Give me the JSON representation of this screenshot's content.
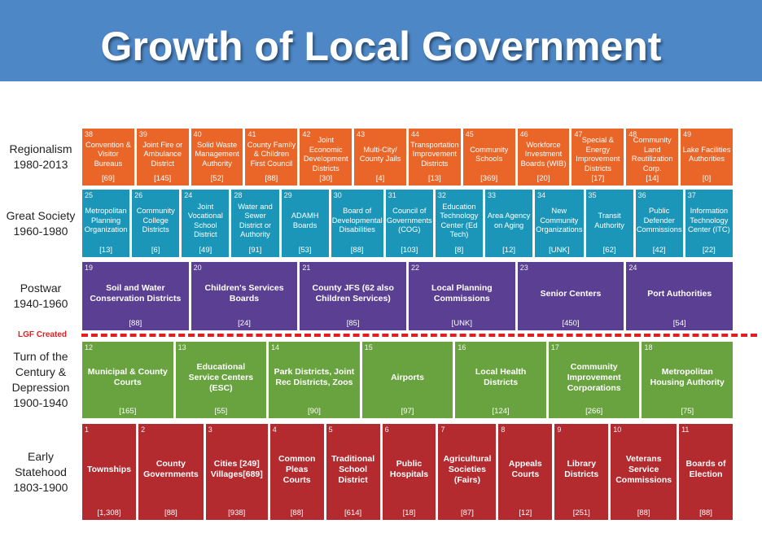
{
  "header": {
    "title": "Growth of Local Government"
  },
  "divider": {
    "label": "LGF Created"
  },
  "rows": [
    {
      "label": [
        "Regionalism",
        "1980-2013"
      ],
      "cells": [
        {
          "number": 38,
          "name": "Convention & Visitor Bureaus",
          "count": "[69]"
        },
        {
          "number": 39,
          "name": "Joint Fire or Ambulance District",
          "count": "[145]"
        },
        {
          "number": 40,
          "name": "Solid Waste Management Authority",
          "count": "[52]"
        },
        {
          "number": 41,
          "name": "County Family & Children First Council",
          "count": "[88]"
        },
        {
          "number": 42,
          "name": "Joint Economic Development Districts",
          "count": "[30]"
        },
        {
          "number": 43,
          "name": "Multi-City/ County Jails",
          "count": "[4]"
        },
        {
          "number": 44,
          "name": "Transportation Improvement Districts",
          "count": "[13]"
        },
        {
          "number": 45,
          "name": "Community Schools",
          "count": "[369]"
        },
        {
          "number": 46,
          "name": "Workforce Investment Boards (WIB)",
          "count": "[20]"
        },
        {
          "number": 47,
          "name": "Special & Energy Improvement Districts",
          "count": "[17]"
        },
        {
          "number": 48,
          "name": "Community Land Reutilization Corp.",
          "count": "[14]"
        },
        {
          "number": 49,
          "name": "Lake Facilities Authorities",
          "count": "[0]"
        }
      ]
    },
    {
      "label": [
        "Great Society",
        "1960-1980"
      ],
      "cells": [
        {
          "number": 25,
          "name": "Metropolitan Planning Organization",
          "count": "[13]"
        },
        {
          "number": 26,
          "name": "Community College Districts",
          "count": "[6]"
        },
        {
          "number": 24,
          "name": "Joint Vocational School District",
          "count": "[49]"
        },
        {
          "number": 28,
          "name": "Water and Sewer District or Authority",
          "count": "[91]"
        },
        {
          "number": 29,
          "name": "ADAMH Boards",
          "count": "[53]"
        },
        {
          "number": 30,
          "name": "Board of Developmental Disabilities",
          "count": "[88]"
        },
        {
          "number": 31,
          "name": "Council of Governments (COG)",
          "count": "[103]"
        },
        {
          "number": 32,
          "name": "Education Technology Center (Ed Tech)",
          "count": "[8]"
        },
        {
          "number": 33,
          "name": "Area Agency on Aging",
          "count": "[12]"
        },
        {
          "number": 34,
          "name": "New Community Organizations",
          "count": "[UNK]"
        },
        {
          "number": 35,
          "name": "Transit Authority",
          "count": "[62]"
        },
        {
          "number": 36,
          "name": "Public Defender Commissions",
          "count": "[42]"
        },
        {
          "number": 37,
          "name": "Information Technology Center (ITC)",
          "count": "[22]"
        }
      ]
    },
    {
      "label": [
        "Postwar",
        "1940-1960"
      ],
      "cells": [
        {
          "number": 19,
          "name": "Soil and Water Conservation Districts",
          "count": "[88]"
        },
        {
          "number": 20,
          "name": "Children's Services Boards",
          "count": "[24]"
        },
        {
          "number": 21,
          "name": "County JFS (62 also Children Services)",
          "count": "[85]"
        },
        {
          "number": 22,
          "name": "Local Planning Commissions",
          "count": "[UNK]"
        },
        {
          "number": 23,
          "name": "Senior Centers",
          "count": "[450]"
        },
        {
          "number": 24,
          "name": "Port Authorities",
          "count": "[54]"
        }
      ]
    },
    {
      "label": [
        "Turn of the",
        "Century &",
        "Depression",
        "1900-1940"
      ],
      "cells": [
        {
          "number": 12,
          "name": "Municipal & County Courts",
          "count": "[165]"
        },
        {
          "number": 13,
          "name": "Educational Service Centers (ESC)",
          "count": "[55]"
        },
        {
          "number": 14,
          "name": "Park Districts, Joint Rec Districts, Zoos",
          "count": "[90]"
        },
        {
          "number": 15,
          "name": "Airports",
          "count": "[97]"
        },
        {
          "number": 16,
          "name": "Local Health Districts",
          "count": "[124]"
        },
        {
          "number": 17,
          "name": "Community Improvement Corporations",
          "count": "[266]"
        },
        {
          "number": 18,
          "name": "Metropolitan Housing Authority",
          "count": "[75]"
        }
      ]
    },
    {
      "label": [
        "Early",
        "Statehood",
        "1803-1900"
      ],
      "cells": [
        {
          "number": 1,
          "name": "Townships",
          "count": "[1,308]"
        },
        {
          "number": 2,
          "name": "County Governments",
          "count": "[88]"
        },
        {
          "number": 3,
          "name": "Cities [249] Villages[689]",
          "count": "[938]"
        },
        {
          "number": 4,
          "name": "Common Pleas Courts",
          "count": "[88]"
        },
        {
          "number": 5,
          "name": "Traditional School District",
          "count": "[614]"
        },
        {
          "number": 6,
          "name": "Public Hospitals",
          "count": "[18]"
        },
        {
          "number": 7,
          "name": "Agricultural Societies (Fairs)",
          "count": "[87]"
        },
        {
          "number": 8,
          "name": "Appeals Courts",
          "count": "[12]"
        },
        {
          "number": 9,
          "name": "Library Districts",
          "count": "[251]"
        },
        {
          "number": 10,
          "name": "Veterans Service Commissions",
          "count": "[88]"
        },
        {
          "number": 11,
          "name": "Boards of Election",
          "count": "[88]"
        }
      ]
    }
  ]
}
